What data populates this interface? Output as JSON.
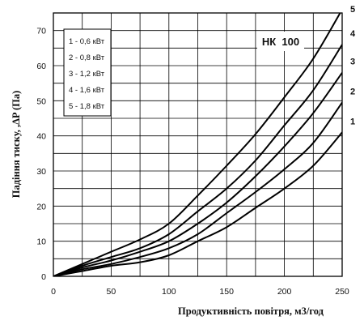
{
  "chart_data": {
    "type": "line",
    "title": "",
    "model_label": "НК  100",
    "xlabel": "Продуктивність повітря, м3/год",
    "ylabel": "Падіння тиску, ,ΔP (Па)",
    "xlim": [
      0,
      250
    ],
    "ylim": [
      0,
      75
    ],
    "xticks": [
      0,
      50,
      100,
      150,
      200,
      250
    ],
    "yticks": [
      0,
      10,
      20,
      30,
      40,
      50,
      60,
      70
    ],
    "grid": true,
    "legend_position": "top-left",
    "legend_title": "",
    "x": [
      0,
      25,
      50,
      75,
      100,
      125,
      150,
      175,
      200,
      225,
      250
    ],
    "series": [
      {
        "name": "1 - 0,6 кВт",
        "label": "1",
        "values": [
          0,
          1.5,
          3,
          4,
          6,
          10,
          14,
          19.5,
          25,
          31.5,
          41
        ]
      },
      {
        "name": "2 - 0,8 кВт",
        "label": "2",
        "values": [
          0,
          2,
          3.5,
          5.5,
          8,
          12,
          18,
          24,
          30.5,
          38,
          49.5
        ]
      },
      {
        "name": "3 - 1,2 кВт",
        "label": "3",
        "values": [
          0,
          2.5,
          4.5,
          7,
          10,
          15,
          21,
          28.5,
          37,
          46.5,
          58
        ]
      },
      {
        "name": "4 - 1,6 кВт",
        "label": "4",
        "values": [
          0,
          3,
          5.5,
          8,
          12,
          18.5,
          25,
          33,
          43,
          53,
          66
        ]
      },
      {
        "name": "5 - 1,8 кВт",
        "label": "5",
        "values": [
          0,
          3.5,
          7,
          10.5,
          15,
          23,
          31.5,
          40.5,
          51,
          62,
          76
        ]
      }
    ]
  }
}
